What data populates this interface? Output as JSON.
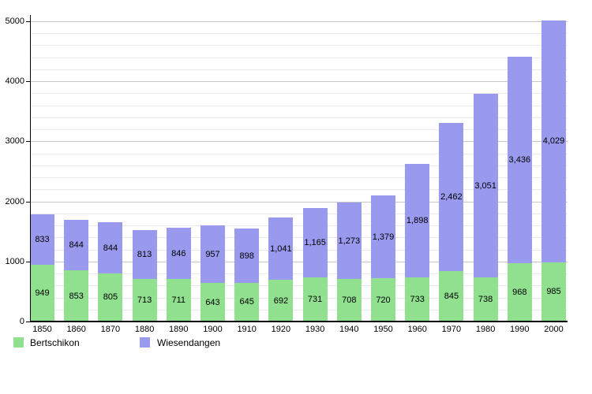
{
  "chart_data": {
    "type": "bar",
    "stacked": true,
    "title": "",
    "xlabel": "",
    "ylabel": "",
    "categories": [
      "1850",
      "1860",
      "1870",
      "1880",
      "1890",
      "1900",
      "1910",
      "1920",
      "1930",
      "1940",
      "1950",
      "1960",
      "1970",
      "1980",
      "1990",
      "2000"
    ],
    "series": [
      {
        "name": "Bertschikon",
        "color": "#90e090",
        "values": [
          949,
          853,
          805,
          713,
          711,
          643,
          645,
          692,
          731,
          708,
          720,
          733,
          845,
          738,
          968,
          985
        ]
      },
      {
        "name": "Wiesendangen",
        "color": "#9999ee",
        "values": [
          833,
          844,
          844,
          813,
          846,
          957,
          898,
          1041,
          1165,
          1273,
          1379,
          1898,
          2462,
          3051,
          3436,
          4029
        ]
      }
    ],
    "ylim": [
      0,
      5000
    ],
    "y_major_step": 1000,
    "y_minor_step": 200,
    "y_ticks": [
      "0",
      "1000",
      "2000",
      "3000",
      "4000",
      "5000"
    ],
    "grid": "on",
    "legend_position": "bottom-left",
    "value_labels": "inside-center"
  },
  "colors": {
    "axis": "#000000",
    "grid_major": "#c6c6c6",
    "grid_minor": "#e9e9e9",
    "background": "#ffffff"
  }
}
